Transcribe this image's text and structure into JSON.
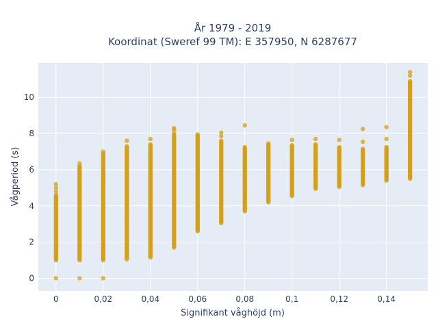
{
  "chart_data": {
    "type": "scatter",
    "title_lines": [
      "År 1979 - 2019",
      "Koordinat (Sweref 99 TM): E 357950, N 6287677"
    ],
    "xlabel": "Signifikant våghöjd (m)",
    "ylabel": "Vågperiod (s)",
    "xlim": [
      -0.0075,
      0.1575
    ],
    "ylim": [
      -0.7,
      11.9
    ],
    "x_ticks": [
      {
        "value": 0,
        "label": "0"
      },
      {
        "value": 0.02,
        "label": "0,02"
      },
      {
        "value": 0.04,
        "label": "0,04"
      },
      {
        "value": 0.06,
        "label": "0,06"
      },
      {
        "value": 0.08,
        "label": "0,08"
      },
      {
        "value": 0.1,
        "label": "0,1"
      },
      {
        "value": 0.12,
        "label": "0,12"
      },
      {
        "value": 0.14,
        "label": "0,14"
      }
    ],
    "y_ticks": [
      {
        "value": 0,
        "label": "0"
      },
      {
        "value": 2,
        "label": "2"
      },
      {
        "value": 4,
        "label": "4"
      },
      {
        "value": 6,
        "label": "6"
      },
      {
        "value": 8,
        "label": "8"
      },
      {
        "value": 10,
        "label": "10"
      }
    ],
    "grid": true,
    "marker_color": "#d4a017",
    "plot_bg": "#e5ecf6",
    "columns": [
      {
        "x": 0.0,
        "y_min": 1.0,
        "y_max": 4.6,
        "extra": [
          0,
          4.8,
          5.0,
          5.2
        ]
      },
      {
        "x": 0.01,
        "y_min": 1.0,
        "y_max": 6.2,
        "extra": [
          0,
          6.35
        ]
      },
      {
        "x": 0.02,
        "y_min": 1.0,
        "y_max": 6.9,
        "extra": [
          0,
          7.0
        ]
      },
      {
        "x": 0.03,
        "y_min": 1.05,
        "y_max": 7.3,
        "extra": [
          7.6
        ]
      },
      {
        "x": 0.04,
        "y_min": 1.15,
        "y_max": 7.4,
        "extra": [
          7.7
        ]
      },
      {
        "x": 0.05,
        "y_min": 1.7,
        "y_max": 8.0,
        "extra": [
          8.2,
          8.3
        ]
      },
      {
        "x": 0.06,
        "y_min": 2.6,
        "y_max": 7.95,
        "extra": []
      },
      {
        "x": 0.07,
        "y_min": 3.05,
        "y_max": 7.6,
        "extra": [
          7.85,
          8.05
        ]
      },
      {
        "x": 0.08,
        "y_min": 3.7,
        "y_max": 7.25,
        "extra": [
          8.45
        ]
      },
      {
        "x": 0.09,
        "y_min": 4.2,
        "y_max": 7.45,
        "extra": []
      },
      {
        "x": 0.1,
        "y_min": 4.55,
        "y_max": 7.35,
        "extra": [
          7.65
        ]
      },
      {
        "x": 0.11,
        "y_min": 4.95,
        "y_max": 7.4,
        "extra": [
          7.7
        ]
      },
      {
        "x": 0.12,
        "y_min": 5.05,
        "y_max": 7.25,
        "extra": [
          7.65
        ]
      },
      {
        "x": 0.13,
        "y_min": 5.15,
        "y_max": 7.15,
        "extra": [
          7.55,
          8.25
        ]
      },
      {
        "x": 0.14,
        "y_min": 5.4,
        "y_max": 7.25,
        "extra": [
          7.7,
          8.35
        ]
      },
      {
        "x": 0.15,
        "y_min": 5.5,
        "y_max": 10.9,
        "extra": [
          11.2,
          11.4
        ]
      }
    ]
  }
}
